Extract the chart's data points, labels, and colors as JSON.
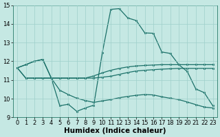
{
  "xlabel": "Humidex (Indice chaleur)",
  "xlim": [
    -0.5,
    23.5
  ],
  "ylim": [
    9,
    15
  ],
  "bg_color": "#c5e8e3",
  "grid_color": "#9ecfca",
  "line_color": "#1a7068",
  "curve1_x": [
    0,
    1,
    2,
    3,
    4,
    5,
    6,
    7,
    8,
    9,
    10,
    11,
    12,
    13,
    14,
    15,
    16,
    17,
    18,
    19,
    20,
    21,
    22,
    23
  ],
  "curve1_y": [
    11.65,
    11.82,
    12.0,
    12.1,
    11.1,
    9.62,
    9.7,
    9.32,
    9.5,
    9.65,
    12.45,
    14.78,
    14.82,
    14.32,
    14.18,
    13.52,
    13.5,
    12.5,
    12.42,
    11.82,
    11.45,
    10.52,
    10.32,
    9.62
  ],
  "curve2_x": [
    0,
    1,
    2,
    3,
    4,
    5,
    6,
    7,
    8,
    9,
    10,
    11,
    12,
    13,
    14,
    15,
    16,
    17,
    18,
    19,
    20,
    21,
    22,
    23
  ],
  "curve2_y": [
    11.65,
    11.82,
    12.0,
    12.1,
    11.1,
    11.1,
    11.1,
    11.1,
    11.1,
    11.22,
    11.38,
    11.52,
    11.62,
    11.7,
    11.75,
    11.78,
    11.8,
    11.82,
    11.82,
    11.82,
    11.82,
    11.82,
    11.82,
    11.82
  ],
  "curve3_x": [
    0,
    1,
    2,
    3,
    4,
    5,
    6,
    7,
    8,
    9,
    10,
    11,
    12,
    13,
    14,
    15,
    16,
    17,
    18,
    19,
    20,
    21,
    22,
    23
  ],
  "curve3_y": [
    11.65,
    11.1,
    11.1,
    11.1,
    11.1,
    11.1,
    11.1,
    11.1,
    11.1,
    11.1,
    11.15,
    11.2,
    11.3,
    11.4,
    11.48,
    11.52,
    11.55,
    11.58,
    11.6,
    11.62,
    11.62,
    11.62,
    11.62,
    11.62
  ],
  "curve4_x": [
    0,
    1,
    2,
    3,
    4,
    5,
    6,
    7,
    8,
    9,
    10,
    11,
    12,
    13,
    14,
    15,
    16,
    17,
    18,
    19,
    20,
    21,
    22,
    23
  ],
  "curve4_y": [
    11.65,
    11.1,
    11.1,
    11.1,
    11.1,
    10.45,
    10.22,
    10.02,
    9.9,
    9.8,
    9.88,
    9.95,
    10.05,
    10.12,
    10.18,
    10.22,
    10.2,
    10.1,
    10.02,
    9.95,
    9.82,
    9.68,
    9.55,
    9.5
  ],
  "xticks": [
    0,
    1,
    2,
    3,
    4,
    5,
    6,
    7,
    8,
    9,
    10,
    11,
    12,
    13,
    14,
    15,
    16,
    17,
    18,
    19,
    20,
    21,
    22,
    23
  ],
  "yticks": [
    9,
    10,
    11,
    12,
    13,
    14,
    15
  ],
  "tick_fontsize": 6,
  "label_fontsize": 7.5,
  "ms": 2.0,
  "lw": 0.9
}
